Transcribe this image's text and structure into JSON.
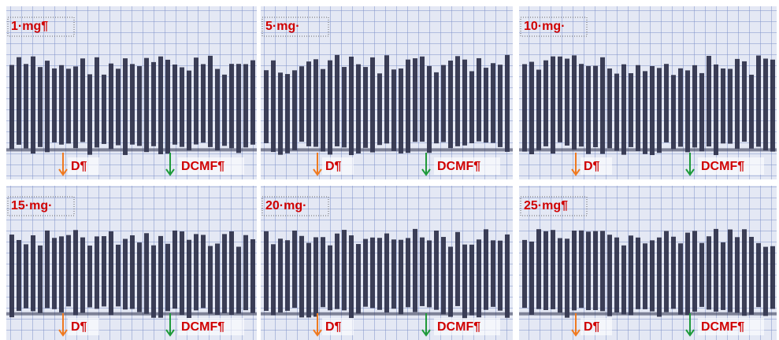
{
  "panels": [
    {
      "label": "1·mg¶",
      "markers": [
        "D¶",
        "DCMF¶"
      ]
    },
    {
      "label": "5·mg·",
      "markers": [
        "D¶",
        "DCMF¶"
      ]
    },
    {
      "label": "10·mg·",
      "markers": [
        "D¶",
        "DCMF¶"
      ]
    },
    {
      "label": "15·mg·",
      "markers": [
        "D¶",
        "DCMF¶"
      ]
    },
    {
      "label": "20·mg·",
      "markers": [
        "D¶",
        "DCMF¶"
      ]
    },
    {
      "label": "25·mg¶",
      "markers": [
        "D¶",
        "DCMF¶"
      ]
    }
  ]
}
